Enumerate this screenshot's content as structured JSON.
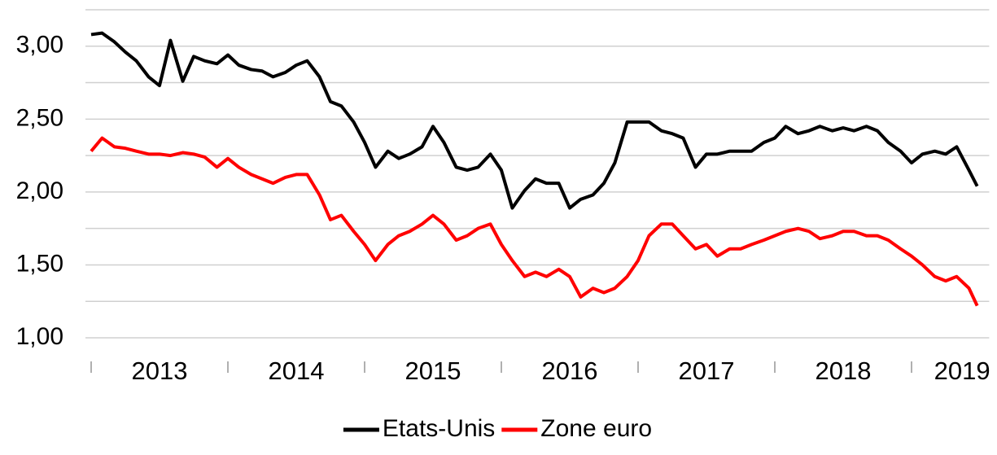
{
  "chart_data": {
    "type": "line",
    "x": [
      2013,
      2013.08,
      2013.17,
      2013.25,
      2013.33,
      2013.42,
      2013.5,
      2013.58,
      2013.67,
      2013.75,
      2013.83,
      2013.92,
      2014,
      2014.08,
      2014.17,
      2014.25,
      2014.33,
      2014.42,
      2014.5,
      2014.58,
      2014.67,
      2014.75,
      2014.83,
      2014.92,
      2015,
      2015.08,
      2015.17,
      2015.25,
      2015.33,
      2015.42,
      2015.5,
      2015.58,
      2015.67,
      2015.75,
      2015.83,
      2015.92,
      2016,
      2016.08,
      2016.17,
      2016.25,
      2016.33,
      2016.42,
      2016.5,
      2016.58,
      2016.67,
      2016.75,
      2016.83,
      2016.92,
      2017,
      2017.08,
      2017.17,
      2017.25,
      2017.33,
      2017.42,
      2017.5,
      2017.58,
      2017.67,
      2017.75,
      2017.83,
      2017.92,
      2018,
      2018.08,
      2018.17,
      2018.25,
      2018.33,
      2018.42,
      2018.5,
      2018.58,
      2018.67,
      2018.75,
      2018.83,
      2018.92,
      2019,
      2019.08,
      2019.17,
      2019.25,
      2019.33,
      2019.42,
      2019.48
    ],
    "series": [
      {
        "name": "Etats-Unis",
        "color": "#000000",
        "values": [
          3.08,
          3.09,
          3.03,
          2.96,
          2.9,
          2.79,
          2.73,
          3.04,
          2.76,
          2.93,
          2.9,
          2.88,
          2.94,
          2.87,
          2.84,
          2.83,
          2.79,
          2.82,
          2.87,
          2.9,
          2.79,
          2.62,
          2.59,
          2.48,
          2.34,
          2.17,
          2.28,
          2.23,
          2.26,
          2.31,
          2.45,
          2.34,
          2.17,
          2.15,
          2.17,
          2.26,
          2.15,
          1.89,
          2.01,
          2.09,
          2.06,
          2.06,
          1.89,
          1.95,
          1.98,
          2.06,
          2.2,
          2.48,
          2.48,
          2.48,
          2.42,
          2.4,
          2.37,
          2.17,
          2.26,
          2.26,
          2.28,
          2.28,
          2.28,
          2.34,
          2.37,
          2.45,
          2.4,
          2.42,
          2.45,
          2.42,
          2.44,
          2.42,
          2.45,
          2.42,
          2.34,
          2.28,
          2.2,
          2.26,
          2.28,
          2.26,
          2.31,
          2.15,
          2.04
        ]
      },
      {
        "name": "Zone euro",
        "color": "#ff0000",
        "values": [
          2.28,
          2.37,
          2.31,
          2.3,
          2.28,
          2.26,
          2.26,
          2.25,
          2.27,
          2.26,
          2.24,
          2.17,
          2.23,
          2.17,
          2.12,
          2.09,
          2.06,
          2.1,
          2.12,
          2.12,
          1.98,
          1.81,
          1.84,
          1.73,
          1.64,
          1.53,
          1.64,
          1.7,
          1.73,
          1.78,
          1.84,
          1.78,
          1.67,
          1.7,
          1.75,
          1.78,
          1.64,
          1.53,
          1.42,
          1.45,
          1.42,
          1.47,
          1.42,
          1.28,
          1.34,
          1.31,
          1.34,
          1.42,
          1.53,
          1.7,
          1.78,
          1.78,
          1.7,
          1.61,
          1.64,
          1.56,
          1.61,
          1.61,
          1.64,
          1.67,
          1.7,
          1.73,
          1.75,
          1.73,
          1.68,
          1.7,
          1.73,
          1.73,
          1.7,
          1.7,
          1.67,
          1.61,
          1.56,
          1.5,
          1.42,
          1.39,
          1.42,
          1.34,
          1.22
        ]
      }
    ],
    "xlim": [
      2013,
      2019.55
    ],
    "xticks": [
      {
        "value": 2013.5,
        "label": "2013"
      },
      {
        "value": 2014.5,
        "label": "2014"
      },
      {
        "value": 2015.5,
        "label": "2015"
      },
      {
        "value": 2016.5,
        "label": "2016"
      },
      {
        "value": 2017.5,
        "label": "2017"
      },
      {
        "value": 2018.5,
        "label": "2018"
      },
      {
        "value": 2019.37,
        "label": "2019"
      }
    ],
    "xminor_ticks": [
      2013,
      2014,
      2015,
      2016,
      2017,
      2018,
      2019
    ],
    "ylim": [
      1.0,
      3.25
    ],
    "yticks": [
      {
        "value": 1.0,
        "label": "1,00"
      },
      {
        "value": 1.5,
        "label": "1,50"
      },
      {
        "value": 2.0,
        "label": "2,00"
      },
      {
        "value": 2.5,
        "label": "2,50"
      },
      {
        "value": 3.0,
        "label": "3,00"
      }
    ],
    "yminor_ticks": [
      1.25,
      1.75,
      2.25,
      2.75,
      3.25
    ],
    "grid": true,
    "legend": "bottom"
  }
}
